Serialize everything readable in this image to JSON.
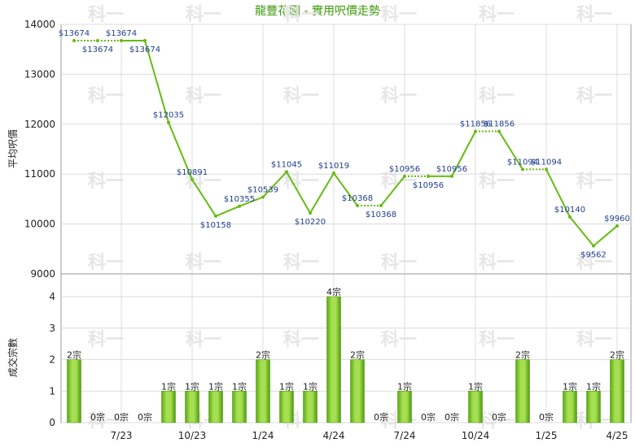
{
  "chart_data": [
    {
      "type": "line",
      "title": "龍豐花園 - 實用呎價走勢",
      "ylabel": "平均呎價",
      "ylim": [
        9000,
        14000
      ],
      "yticks": [
        9000,
        10000,
        11000,
        12000,
        13000,
        14000
      ],
      "grid": true,
      "series": [
        {
          "values": [
            13674,
            13674,
            13674,
            13674,
            12035,
            10891,
            10158,
            10355,
            10539,
            11045,
            10220,
            11019,
            10368,
            10368,
            10956,
            10956,
            10956,
            11856,
            11856,
            11094,
            11094,
            10140,
            9562,
            9960
          ],
          "labels": [
            "$13674",
            "$13674",
            "$13674",
            "$13674",
            "$12035",
            "$10891",
            "$10158",
            "$10355",
            "$10539",
            "$11045",
            "$10220",
            "$11019",
            "$10368",
            "$10368",
            "$10956",
            "$10956",
            "$10956",
            "$11856",
            "$11856",
            "$11094",
            "$11094",
            "$10140",
            "$9562",
            "$9960"
          ],
          "carried_forward": [
            false,
            true,
            true,
            false,
            false,
            false,
            false,
            false,
            false,
            false,
            false,
            false,
            false,
            true,
            false,
            true,
            false,
            false,
            true,
            false,
            true,
            false,
            false,
            false
          ],
          "color": "#66bb11"
        }
      ]
    },
    {
      "type": "bar",
      "ylabel": "成交宗數",
      "ylim": [
        0,
        4
      ],
      "yticks": [
        0,
        1,
        2,
        3,
        4
      ],
      "grid": true,
      "values": [
        2,
        0,
        0,
        0,
        1,
        1,
        1,
        1,
        2,
        1,
        1,
        4,
        2,
        0,
        1,
        0,
        0,
        1,
        0,
        2,
        0,
        1,
        1,
        2
      ],
      "value_labels": [
        "2宗",
        "0宗",
        "0宗",
        "0宗",
        "1宗",
        "1宗",
        "1宗",
        "1宗",
        "2宗",
        "1宗",
        "1宗",
        "4宗",
        "2宗",
        "0宗",
        "1宗",
        "0宗",
        "0宗",
        "1宗",
        "0宗",
        "2宗",
        "0宗",
        "1宗",
        "1宗",
        "2宗"
      ],
      "color": "#77c322",
      "xtick_labels": [
        "7/23",
        "10/23",
        "1/24",
        "4/24",
        "7/24",
        "10/24",
        "1/25",
        "4/25"
      ],
      "xtick_at_index": [
        2,
        5,
        8,
        11,
        14,
        17,
        20,
        23
      ]
    }
  ],
  "watermark": "科一"
}
